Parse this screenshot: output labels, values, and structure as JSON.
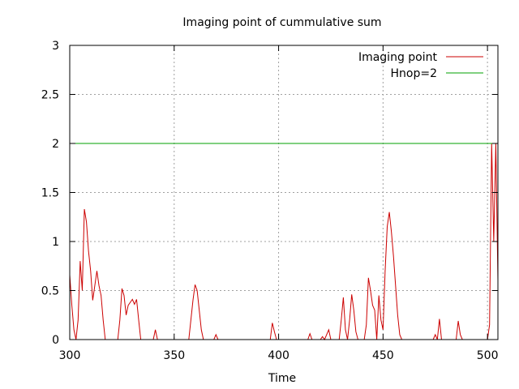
{
  "chart_data": {
    "type": "line",
    "title": "Imaging point of cummulative sum",
    "xlabel": "Time",
    "ylabel": "",
    "xlim": [
      300,
      505
    ],
    "ylim": [
      0,
      3
    ],
    "x_ticks": [
      "300",
      "350",
      "400",
      "450",
      "500"
    ],
    "y_ticks": [
      "0",
      "0.5",
      "1",
      "1.5",
      "2",
      "2.5",
      "3"
    ],
    "grid": true,
    "legend_position": "top-right",
    "series": [
      {
        "name": "Imaging point",
        "color": "#cc0000",
        "points": [
          [
            300,
            0.66
          ],
          [
            301,
            0.35
          ],
          [
            302,
            0.1
          ],
          [
            303,
            0.0
          ],
          [
            304,
            0.2
          ],
          [
            305,
            0.8
          ],
          [
            306,
            0.5
          ],
          [
            307,
            1.33
          ],
          [
            308,
            1.2
          ],
          [
            309,
            0.9
          ],
          [
            310,
            0.7
          ],
          [
            311,
            0.4
          ],
          [
            312,
            0.55
          ],
          [
            313,
            0.7
          ],
          [
            314,
            0.55
          ],
          [
            315,
            0.45
          ],
          [
            316,
            0.2
          ],
          [
            317,
            0.0
          ],
          [
            318,
            0.0
          ],
          [
            323,
            0.0
          ],
          [
            324,
            0.2
          ],
          [
            325,
            0.52
          ],
          [
            326,
            0.45
          ],
          [
            327,
            0.25
          ],
          [
            328,
            0.35
          ],
          [
            329,
            0.38
          ],
          [
            330,
            0.41
          ],
          [
            331,
            0.36
          ],
          [
            332,
            0.41
          ],
          [
            333,
            0.2
          ],
          [
            334,
            0.0
          ],
          [
            340,
            0.0
          ],
          [
            341,
            0.1
          ],
          [
            342,
            0.0
          ],
          [
            357,
            0.0
          ],
          [
            358,
            0.2
          ],
          [
            359,
            0.4
          ],
          [
            360,
            0.56
          ],
          [
            361,
            0.5
          ],
          [
            362,
            0.3
          ],
          [
            363,
            0.1
          ],
          [
            364,
            0.0
          ],
          [
            369,
            0.0
          ],
          [
            370,
            0.05
          ],
          [
            371,
            0.0
          ],
          [
            396,
            0.0
          ],
          [
            397,
            0.17
          ],
          [
            398,
            0.08
          ],
          [
            399,
            0.0
          ],
          [
            414,
            0.0
          ],
          [
            415,
            0.06
          ],
          [
            416,
            0.0
          ],
          [
            420,
            0.0
          ],
          [
            421,
            0.03
          ],
          [
            422,
            0.0
          ],
          [
            423,
            0.05
          ],
          [
            424,
            0.1
          ],
          [
            425,
            0.0
          ],
          [
            429,
            0.0
          ],
          [
            430,
            0.2
          ],
          [
            431,
            0.43
          ],
          [
            432,
            0.1
          ],
          [
            433,
            0.0
          ],
          [
            434,
            0.2
          ],
          [
            435,
            0.46
          ],
          [
            436,
            0.3
          ],
          [
            437,
            0.08
          ],
          [
            438,
            0.0
          ],
          [
            441,
            0.0
          ],
          [
            442,
            0.15
          ],
          [
            443,
            0.63
          ],
          [
            444,
            0.5
          ],
          [
            445,
            0.35
          ],
          [
            446,
            0.3
          ],
          [
            447,
            0.0
          ],
          [
            448,
            0.45
          ],
          [
            449,
            0.2
          ],
          [
            450,
            0.1
          ],
          [
            451,
            0.7
          ],
          [
            452,
            1.15
          ],
          [
            453,
            1.3
          ],
          [
            454,
            1.1
          ],
          [
            455,
            0.85
          ],
          [
            456,
            0.55
          ],
          [
            457,
            0.25
          ],
          [
            458,
            0.05
          ],
          [
            459,
            0.0
          ],
          [
            474,
            0.0
          ],
          [
            475,
            0.05
          ],
          [
            476,
            0.0
          ],
          [
            477,
            0.21
          ],
          [
            478,
            0.0
          ],
          [
            485,
            0.0
          ],
          [
            486,
            0.19
          ],
          [
            487,
            0.05
          ],
          [
            488,
            0.0
          ],
          [
            500,
            0.0
          ],
          [
            501,
            0.15
          ],
          [
            502,
            2.0
          ],
          [
            503,
            1.0
          ],
          [
            504,
            2.0
          ],
          [
            505,
            0.6
          ]
        ]
      },
      {
        "name": "Hnop=2",
        "color": "#00a000",
        "points": [
          [
            300,
            2
          ],
          [
            505,
            2
          ]
        ]
      }
    ]
  }
}
